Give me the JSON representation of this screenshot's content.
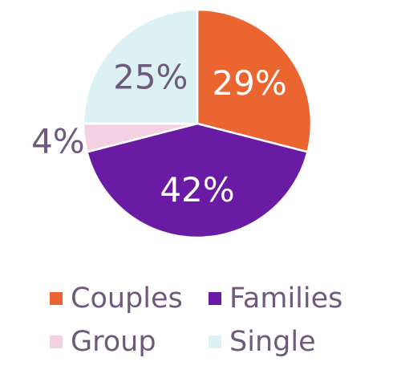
{
  "chart_data": {
    "type": "pie",
    "slices": [
      {
        "name": "Couples",
        "value": 29,
        "label": "29%",
        "color": "#ea6530"
      },
      {
        "name": "Families",
        "value": 42,
        "label": "42%",
        "color": "#6a1ba3"
      },
      {
        "name": "Group",
        "value": 4,
        "label": "4%",
        "color": "#f4d1e2"
      },
      {
        "name": "Single",
        "value": 25,
        "label": "25%",
        "color": "#dcf1f3"
      }
    ],
    "legend_placement": "bottom",
    "inside_label_color": "#ffffff",
    "dark_label_color": "#6e5a7b"
  }
}
